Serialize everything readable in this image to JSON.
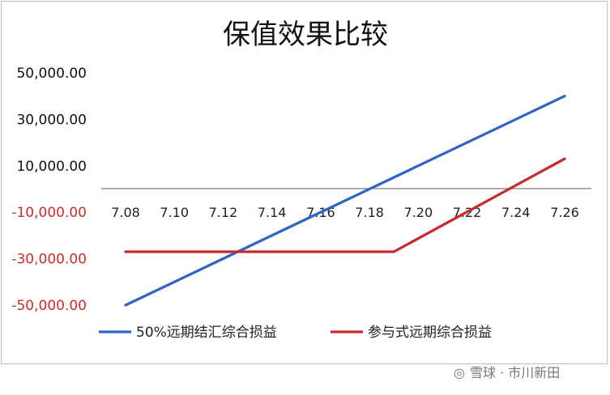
{
  "chart_data": {
    "type": "line",
    "title": "保值效果比较",
    "categories": [
      "7.08",
      "7.10",
      "7.12",
      "7.14",
      "7.16",
      "7.18",
      "7.20",
      "7.22",
      "7.24",
      "7.26"
    ],
    "x": [
      7.08,
      7.1,
      7.12,
      7.14,
      7.16,
      7.18,
      7.2,
      7.22,
      7.24,
      7.26
    ],
    "ylim": [
      -50000,
      50000
    ],
    "yticks": [
      {
        "label": "50,000.00",
        "value": 50000
      },
      {
        "label": "30,000.00",
        "value": 30000
      },
      {
        "label": "10,000.00",
        "value": 10000
      },
      {
        "label": "-10,000.00",
        "value": -10000
      },
      {
        "label": "-30,000.00",
        "value": -30000
      },
      {
        "label": "-50,000.00",
        "value": -50000
      }
    ],
    "series": [
      {
        "name": "50%远期结汇综合损益",
        "color": "#2e63c8",
        "points": [
          [
            7.08,
            -50000
          ],
          [
            7.26,
            40000
          ]
        ]
      },
      {
        "name": "参与式远期综合损益",
        "color": "#c8292d",
        "points": [
          [
            7.08,
            -27000
          ],
          [
            7.19,
            -27000
          ],
          [
            7.26,
            13000
          ]
        ]
      }
    ],
    "grid": false,
    "legend": "bottom",
    "colors": {
      "positive_tick": "#111111",
      "negative_tick": "#d22b2b",
      "axis": "#595959"
    }
  },
  "watermark": "雪球 · 市川新田"
}
